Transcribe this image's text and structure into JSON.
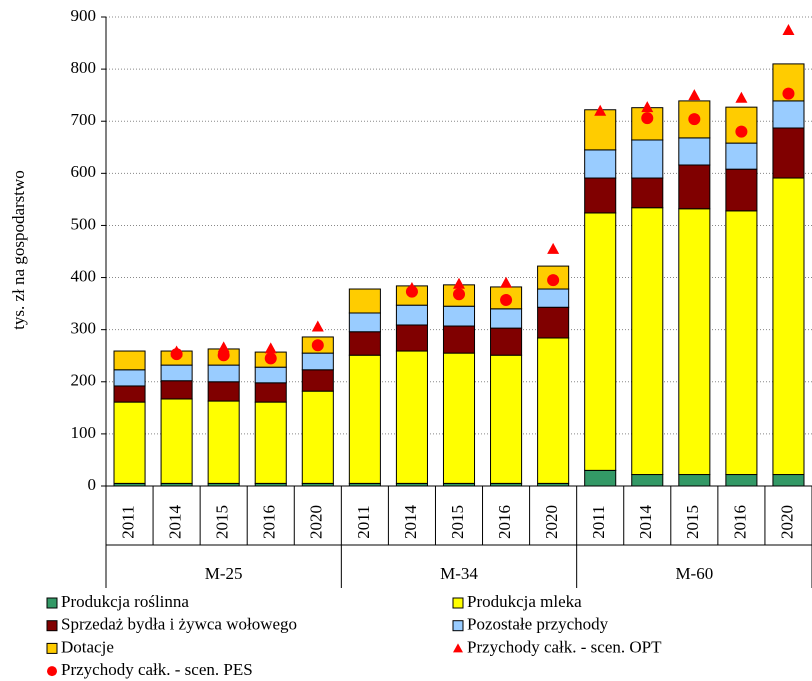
{
  "chart_data": {
    "type": "bar",
    "stacked": true,
    "y_label": "tys. zł na gospodarstwo",
    "groups": [
      {
        "name": "M-25",
        "categories": [
          "2011",
          "2014",
          "2015",
          "2016",
          "2020"
        ]
      },
      {
        "name": "M-34",
        "categories": [
          "2011",
          "2014",
          "2015",
          "2016",
          "2020"
        ]
      },
      {
        "name": "M-60",
        "categories": [
          "2011",
          "2014",
          "2015",
          "2016",
          "2020"
        ]
      }
    ],
    "ylim": [
      0,
      900
    ],
    "yticks": [
      0,
      100,
      200,
      300,
      400,
      500,
      600,
      700,
      800,
      900
    ],
    "grid": true,
    "series": [
      {
        "name": "Produkcja roślinna",
        "type": "bar",
        "color": "#339966",
        "values": [
          5,
          5,
          5,
          5,
          5,
          5,
          5,
          5,
          5,
          5,
          30,
          22,
          22,
          22,
          22
        ]
      },
      {
        "name": "Produkcja mleka",
        "type": "bar",
        "color": "#ffff00",
        "values": [
          156,
          162,
          158,
          156,
          177,
          246,
          254,
          250,
          246,
          279,
          494,
          512,
          510,
          506,
          569
        ]
      },
      {
        "name": "Sprzedaż bydła i żywca wołowego",
        "type": "bar",
        "color": "#800000",
        "values": [
          31,
          35,
          37,
          37,
          41,
          45,
          50,
          52,
          52,
          59,
          67,
          57,
          84,
          80,
          96
        ]
      },
      {
        "name": "Pozostałe przychody",
        "type": "bar",
        "color": "#99ccff",
        "values": [
          31,
          30,
          32,
          30,
          32,
          36,
          38,
          38,
          37,
          35,
          54,
          73,
          52,
          50,
          52
        ]
      },
      {
        "name": "Dotacje",
        "type": "bar",
        "color": "#ffcc00",
        "values": [
          36,
          27,
          31,
          29,
          31,
          46,
          37,
          41,
          42,
          44,
          77,
          62,
          71,
          69,
          71
        ]
      },
      {
        "name": "Przychody całk. - scen. OPT",
        "type": "scatter",
        "marker": "triangle",
        "color": "#ff0000",
        "values": [
          null,
          258,
          266,
          264,
          306,
          null,
          380,
          388,
          390,
          455,
          720,
          727,
          750,
          745,
          875
        ]
      },
      {
        "name": "Przychody całk. - scen. PES",
        "type": "scatter",
        "marker": "circle",
        "color": "#ff0000",
        "values": [
          null,
          253,
          251,
          245,
          270,
          null,
          373,
          368,
          357,
          395,
          null,
          706,
          704,
          680,
          753
        ]
      }
    ]
  }
}
